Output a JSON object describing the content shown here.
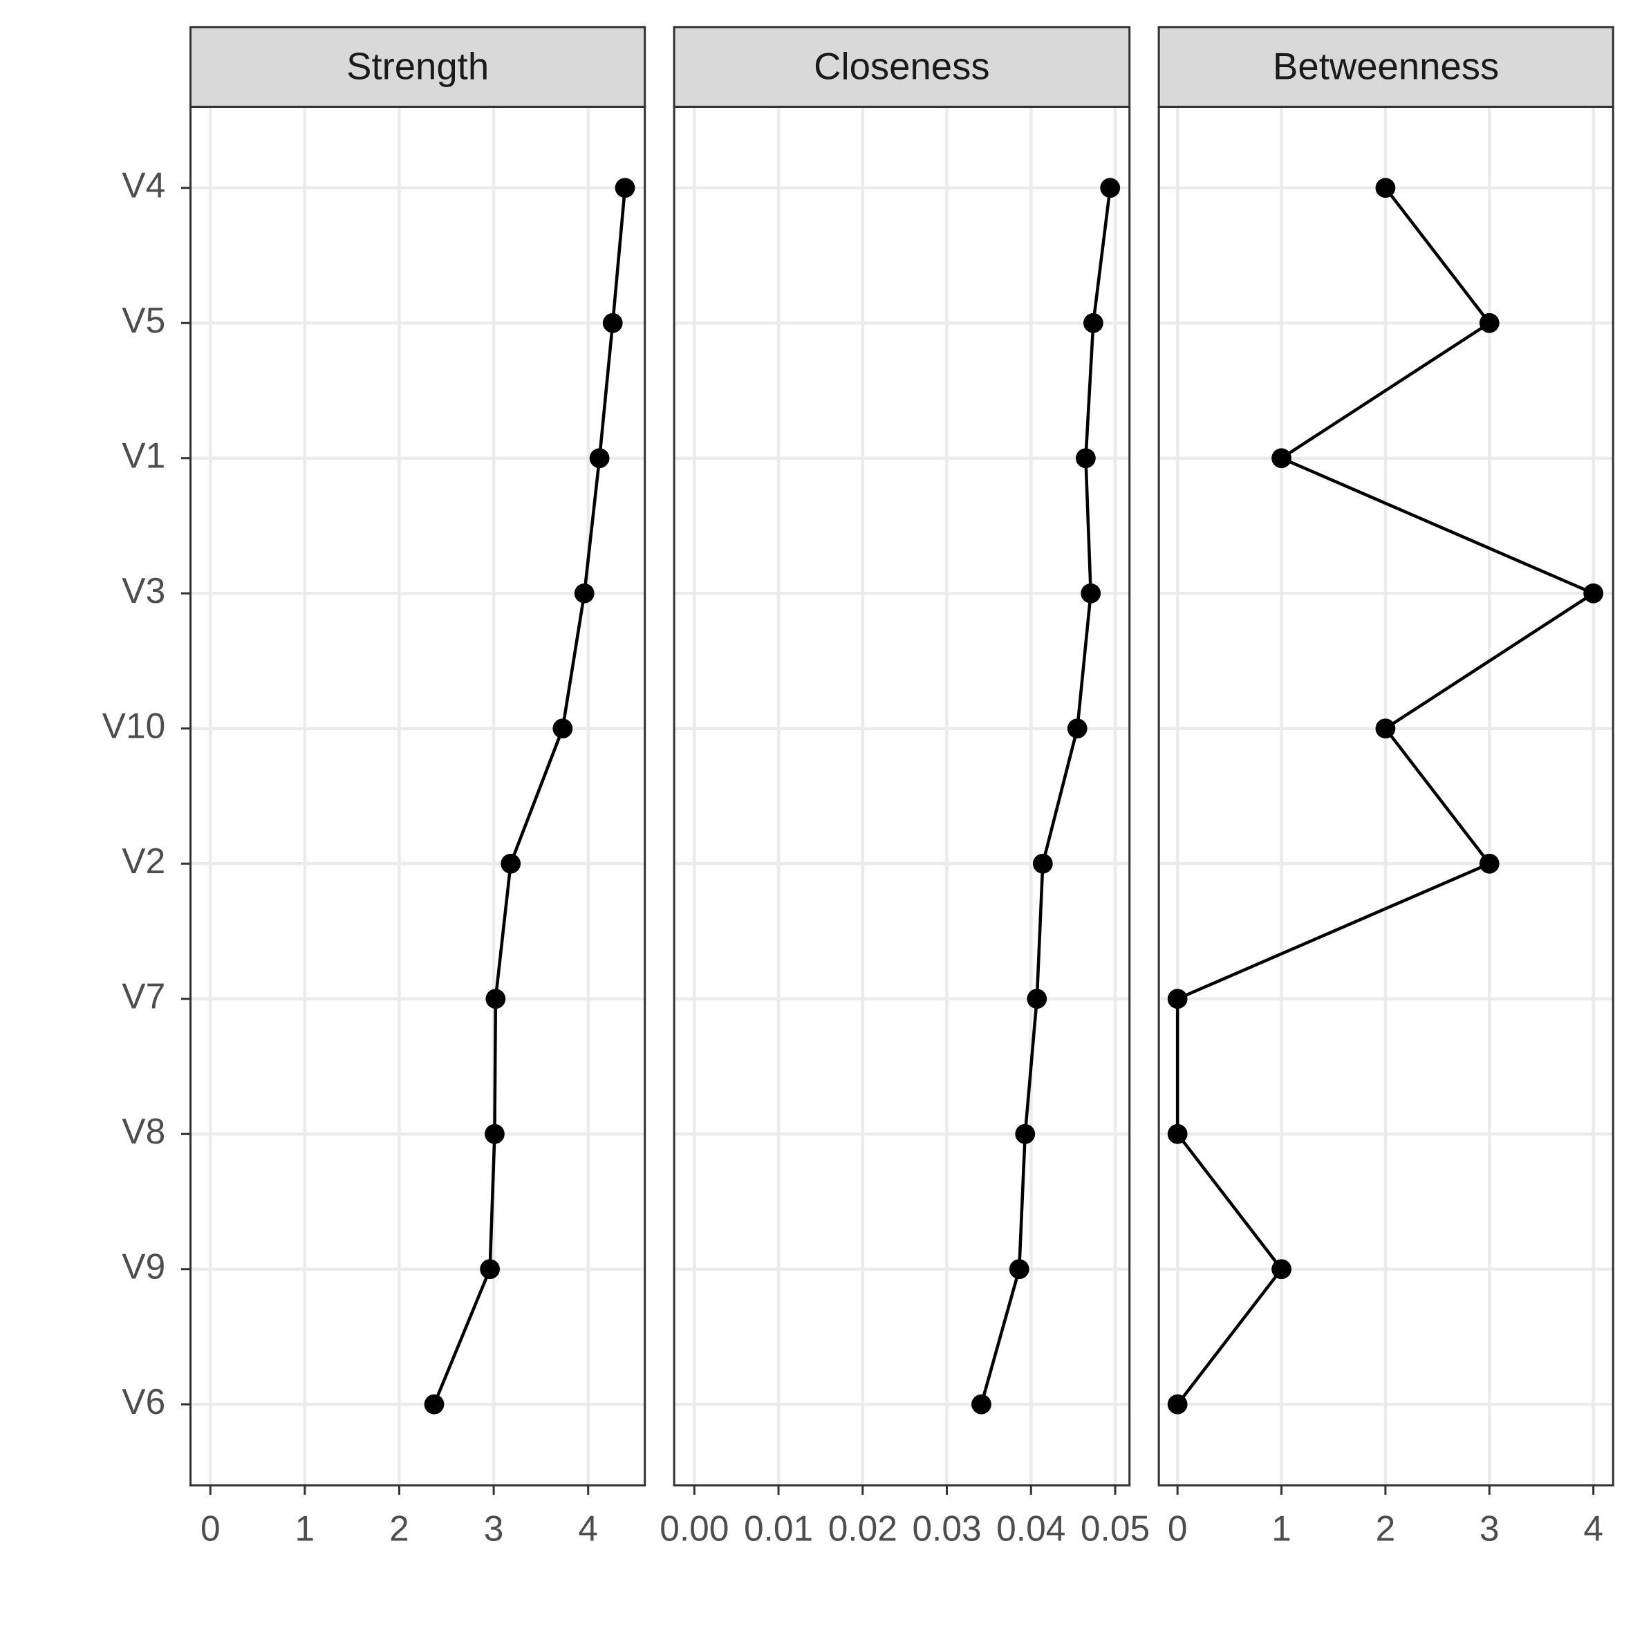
{
  "chart_data": [
    {
      "type": "line",
      "title": "Strength",
      "categories": [
        "V4",
        "V5",
        "V1",
        "V3",
        "V10",
        "V2",
        "V7",
        "V8",
        "V9",
        "V6"
      ],
      "values": [
        4.39,
        4.26,
        4.12,
        3.96,
        3.73,
        3.18,
        3.02,
        3.01,
        2.96,
        2.37
      ],
      "color": "#000000",
      "xlim": [
        -0.21,
        4.6
      ],
      "xticks": [
        0,
        1,
        2,
        3,
        4
      ],
      "grid": true
    },
    {
      "type": "line",
      "title": "Closeness",
      "categories": [
        "V4",
        "V5",
        "V1",
        "V3",
        "V10",
        "V2",
        "V7",
        "V8",
        "V9",
        "V6"
      ],
      "values": [
        0.0494,
        0.0474,
        0.0465,
        0.0471,
        0.0455,
        0.0414,
        0.0407,
        0.0393,
        0.0386,
        0.0341
      ],
      "color": "#000000",
      "xlim": [
        -0.0024,
        0.0517
      ],
      "xticks": [
        {
          "value": 0,
          "label": "0.00"
        },
        0.01,
        0.02,
        0.03,
        0.04,
        0.05
      ],
      "grid": true
    },
    {
      "type": "line",
      "title": "Betweenness",
      "categories": [
        "V4",
        "V5",
        "V1",
        "V3",
        "V10",
        "V2",
        "V7",
        "V8",
        "V9",
        "V6"
      ],
      "values": [
        2,
        3,
        1,
        4,
        2,
        3,
        0,
        0,
        1,
        0
      ],
      "color": "#000000",
      "xlim": [
        -0.18,
        4.19
      ],
      "xticks": [
        0,
        1,
        2,
        3,
        4
      ],
      "grid": true
    }
  ]
}
